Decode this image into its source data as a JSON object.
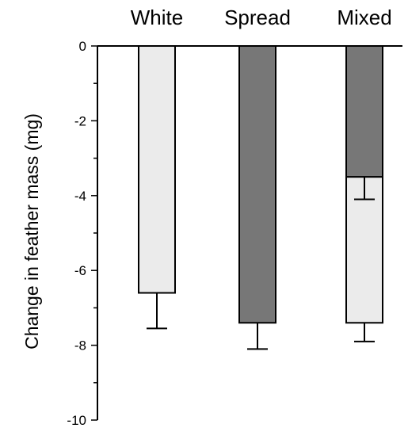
{
  "chart_data": {
    "type": "bar",
    "categories": [
      "White",
      "Spread",
      "Mixed"
    ],
    "ylabel": "Change in feather mass (mg)",
    "ylim": [
      -10,
      0
    ],
    "yticks": [
      0,
      -2,
      -4,
      -6,
      -8,
      -10
    ],
    "yticks_minor": [
      -1,
      -3,
      -5,
      -7,
      -9
    ],
    "grid": false,
    "legend": "none",
    "colors": {
      "light": "#ebebeb",
      "dark": "#777777",
      "stroke": "#000000"
    },
    "bars": [
      {
        "category": "White",
        "segments": [
          {
            "from": 0,
            "to": -6.6,
            "color": "light"
          }
        ],
        "error_bar": {
          "at": -6.6,
          "to": -7.55
        }
      },
      {
        "category": "Spread",
        "segments": [
          {
            "from": 0,
            "to": -7.4,
            "color": "dark"
          }
        ],
        "error_bar": {
          "at": -7.4,
          "to": -8.1
        }
      },
      {
        "category": "Mixed",
        "segments": [
          {
            "from": 0,
            "to": -3.5,
            "color": "dark"
          },
          {
            "from": -3.5,
            "to": -7.4,
            "color": "light"
          }
        ],
        "error_bars": [
          {
            "at": -3.5,
            "to": -4.1
          },
          {
            "at": -7.4,
            "to": -7.9
          }
        ]
      }
    ]
  }
}
